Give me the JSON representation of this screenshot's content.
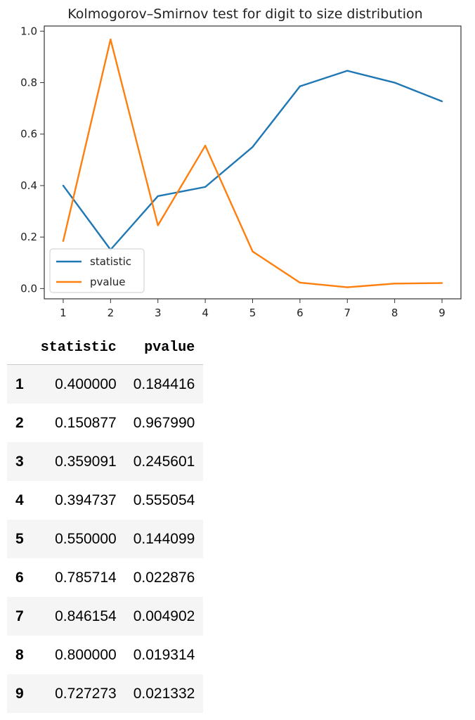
{
  "chart_data": {
    "type": "line",
    "title": "Kolmogorov–Smirnov test for digit to size distribution",
    "x": [
      1,
      2,
      3,
      4,
      5,
      6,
      7,
      8,
      9
    ],
    "series": [
      {
        "name": "statistic",
        "color": "#1f77b4",
        "values": [
          0.4,
          0.150877,
          0.359091,
          0.394737,
          0.55,
          0.785714,
          0.846154,
          0.8,
          0.727273
        ]
      },
      {
        "name": "pvalue",
        "color": "#ff7f0e",
        "values": [
          0.184416,
          0.96799,
          0.245601,
          0.555054,
          0.144099,
          0.022876,
          0.004902,
          0.019314,
          0.021332
        ]
      }
    ],
    "xticks": [
      "1",
      "2",
      "3",
      "4",
      "5",
      "6",
      "7",
      "8",
      "9"
    ],
    "yticks": [
      "0.0",
      "0.2",
      "0.4",
      "0.6",
      "0.8",
      "1.0"
    ],
    "xlim": [
      0.6,
      9.4
    ],
    "ylim": [
      -0.04,
      1.02
    ],
    "legend": "lower-left",
    "grid": false
  },
  "table": {
    "columns": [
      "statistic",
      "pvalue"
    ],
    "rows": [
      {
        "index": "1",
        "statistic": "0.400000",
        "pvalue": "0.184416"
      },
      {
        "index": "2",
        "statistic": "0.150877",
        "pvalue": "0.967990"
      },
      {
        "index": "3",
        "statistic": "0.359091",
        "pvalue": "0.245601"
      },
      {
        "index": "4",
        "statistic": "0.394737",
        "pvalue": "0.555054"
      },
      {
        "index": "5",
        "statistic": "0.550000",
        "pvalue": "0.144099"
      },
      {
        "index": "6",
        "statistic": "0.785714",
        "pvalue": "0.022876"
      },
      {
        "index": "7",
        "statistic": "0.846154",
        "pvalue": "0.004902"
      },
      {
        "index": "8",
        "statistic": "0.800000",
        "pvalue": "0.019314"
      },
      {
        "index": "9",
        "statistic": "0.727273",
        "pvalue": "0.021332"
      }
    ]
  }
}
